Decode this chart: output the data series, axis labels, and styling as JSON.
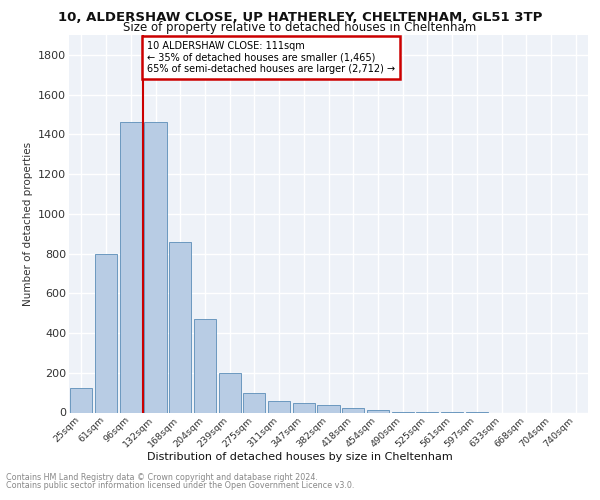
{
  "title_line1": "10, ALDERSHAW CLOSE, UP HATHERLEY, CHELTENHAM, GL51 3TP",
  "title_line2": "Size of property relative to detached houses in Cheltenham",
  "xlabel": "Distribution of detached houses by size in Cheltenham",
  "ylabel": "Number of detached properties",
  "bar_labels": [
    "25sqm",
    "61sqm",
    "96sqm",
    "132sqm",
    "168sqm",
    "204sqm",
    "239sqm",
    "275sqm",
    "311sqm",
    "347sqm",
    "382sqm",
    "418sqm",
    "454sqm",
    "490sqm",
    "525sqm",
    "561sqm",
    "597sqm",
    "633sqm",
    "668sqm",
    "704sqm",
    "740sqm"
  ],
  "bar_values": [
    125,
    800,
    1460,
    1460,
    860,
    470,
    200,
    100,
    60,
    50,
    40,
    25,
    15,
    5,
    5,
    2,
    2,
    0,
    0,
    0,
    0
  ],
  "bar_color": "#b8cce4",
  "bar_edge_color": "#5b8db8",
  "vline_x": 2.5,
  "vline_color": "#cc0000",
  "annotation_text": "10 ALDERSHAW CLOSE: 111sqm\n← 35% of detached houses are smaller (1,465)\n65% of semi-detached houses are larger (2,712) →",
  "annotation_box_color": "#ffffff",
  "annotation_box_edge": "#cc0000",
  "ylim": [
    0,
    1900
  ],
  "yticks": [
    0,
    200,
    400,
    600,
    800,
    1000,
    1200,
    1400,
    1600,
    1800
  ],
  "footer_line1": "Contains HM Land Registry data © Crown copyright and database right 2024.",
  "footer_line2": "Contains public sector information licensed under the Open Government Licence v3.0.",
  "bg_color": "#eef2f8",
  "grid_color": "#ffffff"
}
